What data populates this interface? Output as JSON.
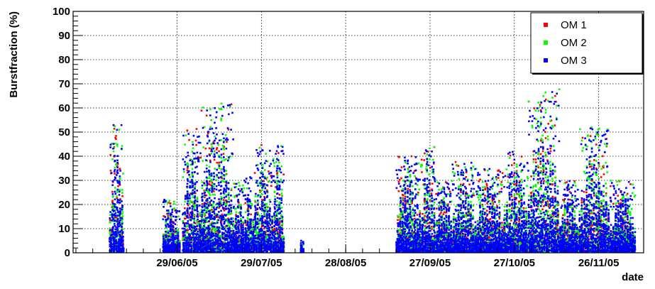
{
  "chart_data": {
    "type": "scatter",
    "title": "",
    "xlabel": "date",
    "ylabel": "Burstfraction (%)",
    "x_range": [
      "2005-05-23",
      "2005-12-12"
    ],
    "ylim": [
      0,
      100
    ],
    "x_tick_labels": [
      {
        "date": "2005-06-29",
        "label": "29/06/05"
      },
      {
        "date": "2005-07-29",
        "label": "29/07/05"
      },
      {
        "date": "2005-08-28",
        "label": "28/08/05"
      },
      {
        "date": "2005-09-27",
        "label": "27/09/05"
      },
      {
        "date": "2005-10-27",
        "label": "27/10/05"
      },
      {
        "date": "2005-11-26",
        "label": "26/11/05"
      }
    ],
    "y_tick_labels": [
      "0",
      "10",
      "20",
      "30",
      "40",
      "50",
      "60",
      "70",
      "80",
      "90",
      "100"
    ],
    "grid": true,
    "legend": {
      "placement": "top-right",
      "entries": [
        {
          "name": "OM 1",
          "color": "#ff0000"
        },
        {
          "name": "OM 2",
          "color": "#00ff00"
        },
        {
          "name": "OM 3",
          "color": "#0000ff"
        }
      ]
    },
    "bursts": [
      {
        "start": "2005-06-05",
        "end": "2005-06-10",
        "peak": 53
      },
      {
        "start": "2005-06-24",
        "end": "2005-06-30",
        "peak": 22
      },
      {
        "start": "2005-07-01",
        "end": "2005-07-07",
        "peak": 52
      },
      {
        "start": "2005-07-07",
        "end": "2005-07-19",
        "peak": 62
      },
      {
        "start": "2005-07-19",
        "end": "2005-07-23",
        "peak": 30
      },
      {
        "start": "2005-07-23",
        "end": "2005-07-26",
        "peak": 32
      },
      {
        "start": "2005-07-26",
        "end": "2005-08-02",
        "peak": 45
      },
      {
        "start": "2005-08-02",
        "end": "2005-08-06",
        "peak": 45
      },
      {
        "start": "2005-08-12",
        "end": "2005-08-13",
        "peak": 5
      },
      {
        "start": "2005-09-15",
        "end": "2005-09-24",
        "peak": 40
      },
      {
        "start": "2005-09-24",
        "end": "2005-09-29",
        "peak": 44
      },
      {
        "start": "2005-09-29",
        "end": "2005-10-05",
        "peak": 30
      },
      {
        "start": "2005-10-05",
        "end": "2005-10-13",
        "peak": 38
      },
      {
        "start": "2005-10-13",
        "end": "2005-10-23",
        "peak": 35
      },
      {
        "start": "2005-10-23",
        "end": "2005-11-01",
        "peak": 42
      },
      {
        "start": "2005-11-01",
        "end": "2005-11-12",
        "peak": 68
      },
      {
        "start": "2005-11-12",
        "end": "2005-11-19",
        "peak": 30
      },
      {
        "start": "2005-11-19",
        "end": "2005-11-30",
        "peak": 52
      },
      {
        "start": "2005-11-30",
        "end": "2005-12-09",
        "peak": 30
      }
    ],
    "series": [
      {
        "name": "OM 1",
        "color": "#ff0000"
      },
      {
        "name": "OM 2",
        "color": "#00ff00"
      },
      {
        "name": "OM 3",
        "color": "#0000ff"
      }
    ]
  }
}
